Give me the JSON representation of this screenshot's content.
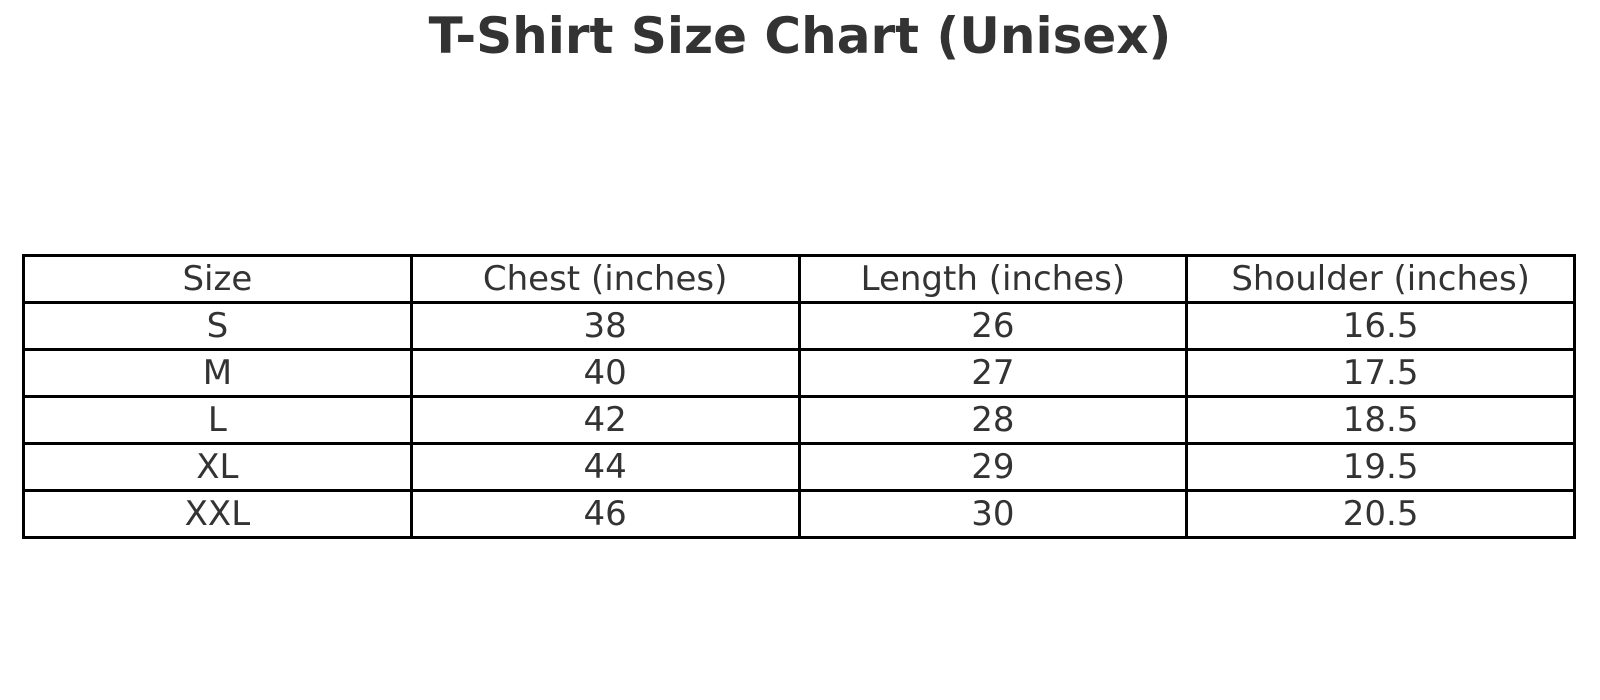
{
  "chart_data": {
    "type": "table",
    "title": "T-Shirt Size Chart (Unisex)",
    "columns": [
      "Size",
      "Chest (inches)",
      "Length (inches)",
      "Shoulder (inches)"
    ],
    "rows": [
      [
        "S",
        "38",
        "26",
        "16.5"
      ],
      [
        "M",
        "40",
        "27",
        "17.5"
      ],
      [
        "L",
        "42",
        "28",
        "18.5"
      ],
      [
        "XL",
        "44",
        "29",
        "19.5"
      ],
      [
        "XXL",
        "46",
        "30",
        "20.5"
      ]
    ],
    "layout": {
      "grid": "full-borders",
      "header_row": true,
      "text_align": "center"
    }
  },
  "colors": {
    "background": "#ffffff",
    "text": "#333333",
    "border": "#000000"
  }
}
